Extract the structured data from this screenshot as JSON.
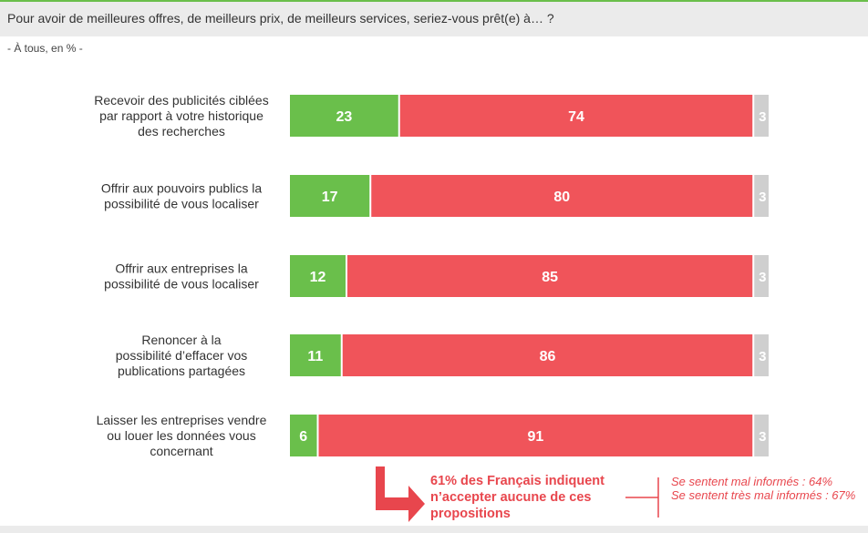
{
  "header": {
    "question": "Pour avoir de meilleures offres, de meilleurs prix, de meilleurs services, seriez-vous prêt(e) à… ?",
    "subtitle": "- À tous, en % -"
  },
  "colors": {
    "oui": "#6abf4b",
    "non": "#f0545a",
    "nsp": "#cfcfcf",
    "accent": "#e8464d"
  },
  "chart_data": {
    "type": "bar",
    "orientation": "horizontal",
    "stacked": true,
    "categories": [
      [
        "Recevoir des publicités ciblées",
        "par rapport à votre historique",
        "des recherches"
      ],
      [
        "Offrir aux pouvoirs publics la",
        "possibilité de vous localiser"
      ],
      [
        "Offrir aux entreprises la",
        "possibilité de vous localiser"
      ],
      [
        "Renoncer à la",
        "possibilité d’effacer vos",
        "publications partagées"
      ],
      [
        "Laisser les entreprises vendre",
        "ou louer les données vous",
        "concernant"
      ]
    ],
    "series": [
      {
        "values": [
          23,
          17,
          12,
          11,
          6
        ],
        "color": "#6abf4b"
      },
      {
        "values": [
          74,
          80,
          85,
          86,
          91
        ],
        "color": "#f0545a"
      },
      {
        "values": [
          3,
          3,
          3,
          3,
          3
        ],
        "color": "#cfcfcf"
      }
    ],
    "xlim": [
      0,
      100
    ],
    "grid": false
  },
  "callout": {
    "text": "61% des Français indiquent n’accepter aucune de ces propositions"
  },
  "note": {
    "line1": "Se sentent mal informés : 64%",
    "line2": "Se sentent très mal informés : 67%"
  }
}
